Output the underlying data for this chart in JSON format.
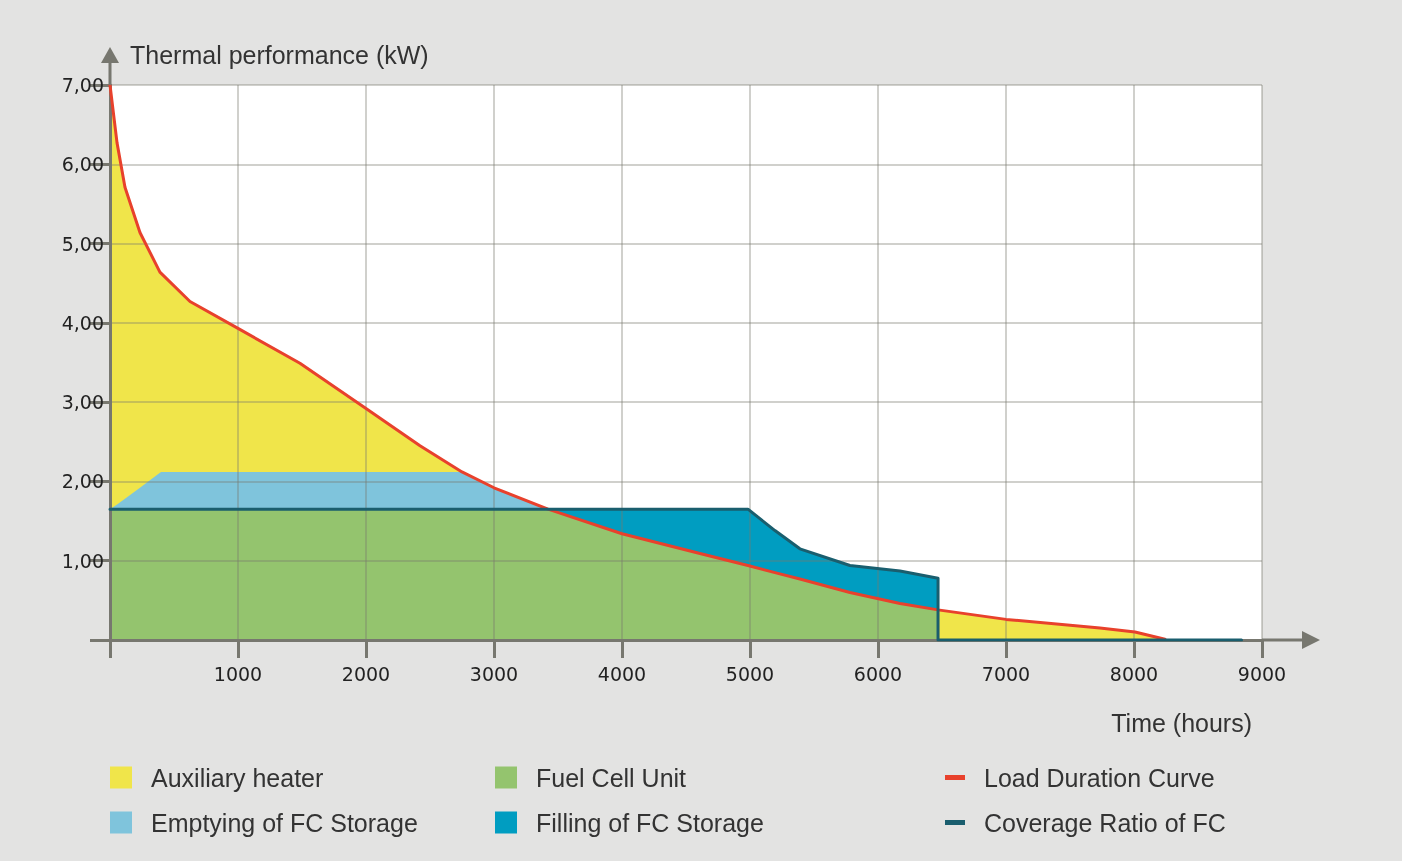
{
  "chart_data": {
    "type": "area",
    "ylabel": "Thermal performance (kW)",
    "xlabel": "Time (hours)",
    "xlim": [
      0,
      9000
    ],
    "ylim": [
      0,
      7
    ],
    "xticks": [
      1000,
      2000,
      3000,
      4000,
      5000,
      6000,
      7000,
      8000,
      9000
    ],
    "yticks": [
      {
        "value": 1,
        "label": "1,00"
      },
      {
        "value": 2,
        "label": "2,00"
      },
      {
        "value": 3,
        "label": "3,00"
      },
      {
        "value": 4,
        "label": "4,00"
      },
      {
        "value": 5,
        "label": "5,00"
      },
      {
        "value": 6,
        "label": "6,00"
      },
      {
        "value": 7,
        "label": "7,00"
      }
    ],
    "grid": true,
    "legend": "bottom",
    "stacked": true,
    "marker": "none",
    "line_style": "solid",
    "x": [
      0,
      55,
      117,
      234,
      390,
      400,
      625,
      1000,
      1484,
      2000,
      2422,
      2750,
      3000,
      3422,
      4000,
      4609,
      4984,
      5195,
      5390,
      5781,
      6172,
      6469,
      6469,
      7000,
      7734,
      8008,
      8242,
      8840
    ],
    "series": [
      {
        "name": "Fuel Cell Unit",
        "color": "#94c46e",
        "values": [
          1.65,
          1.65,
          1.65,
          1.65,
          1.65,
          1.65,
          1.65,
          1.65,
          1.65,
          1.65,
          1.65,
          1.65,
          1.65,
          1.65,
          1.34,
          1.09,
          0.94,
          0.85,
          0.77,
          0.6,
          0.46,
          0.38,
          0,
          null,
          null,
          null,
          null,
          null
        ]
      },
      {
        "name": "Emptying of FC Storage",
        "color": "#7fc4dc",
        "values": [
          0,
          0.06,
          0.13,
          0.27,
          0.46,
          0.47,
          0.47,
          0.47,
          0.47,
          0.47,
          0.47,
          0.47,
          0.27,
          0,
          null,
          null,
          null,
          null,
          null,
          null,
          null,
          null,
          null,
          null,
          null,
          null,
          null,
          null
        ]
      },
      {
        "name": "Auxiliary heater",
        "color": "#f0e54a",
        "values": [
          5.35,
          4.56,
          3.93,
          3.22,
          2.53,
          2.5,
          2.15,
          1.81,
          1.37,
          0.8,
          0.33,
          0,
          null,
          null,
          null,
          null,
          null,
          null,
          null,
          null,
          null,
          0,
          0.38,
          0.26,
          0.15,
          0.1,
          0.01,
          0
        ]
      },
      {
        "name": "Filling of FC Storage",
        "color": "#009dc1",
        "values": [
          null,
          null,
          null,
          null,
          null,
          null,
          null,
          null,
          null,
          null,
          null,
          null,
          null,
          0,
          0.31,
          0.56,
          0.71,
          0.53,
          0.38,
          0.34,
          0.41,
          0.4,
          0,
          null,
          null,
          null,
          null,
          null
        ]
      },
      {
        "name": "Load Duration Curve",
        "color": "#e8412c",
        "type": "line",
        "x": [
          0,
          55,
          117,
          234,
          390,
          625,
          1000,
          1484,
          2000,
          2422,
          2750,
          3000,
          3422,
          4000,
          4609,
          4984,
          5195,
          5390,
          5781,
          6172,
          6469,
          7000,
          7734,
          8008,
          8242
        ],
        "values": [
          7.0,
          6.27,
          5.71,
          5.14,
          4.64,
          4.27,
          3.93,
          3.49,
          2.92,
          2.45,
          2.12,
          1.92,
          1.65,
          1.34,
          1.09,
          0.94,
          0.85,
          0.77,
          0.6,
          0.46,
          0.38,
          0.26,
          0.15,
          0.1,
          0.01
        ]
      },
      {
        "name": "Coverage Ratio of FC",
        "color": "#1a5e6e",
        "type": "line",
        "x": [
          0,
          4984,
          5195,
          5390,
          5781,
          6172,
          6469,
          6469,
          8840
        ],
        "values": [
          1.65,
          1.65,
          1.38,
          1.15,
          0.94,
          0.87,
          0.78,
          0,
          0
        ]
      }
    ]
  }
}
